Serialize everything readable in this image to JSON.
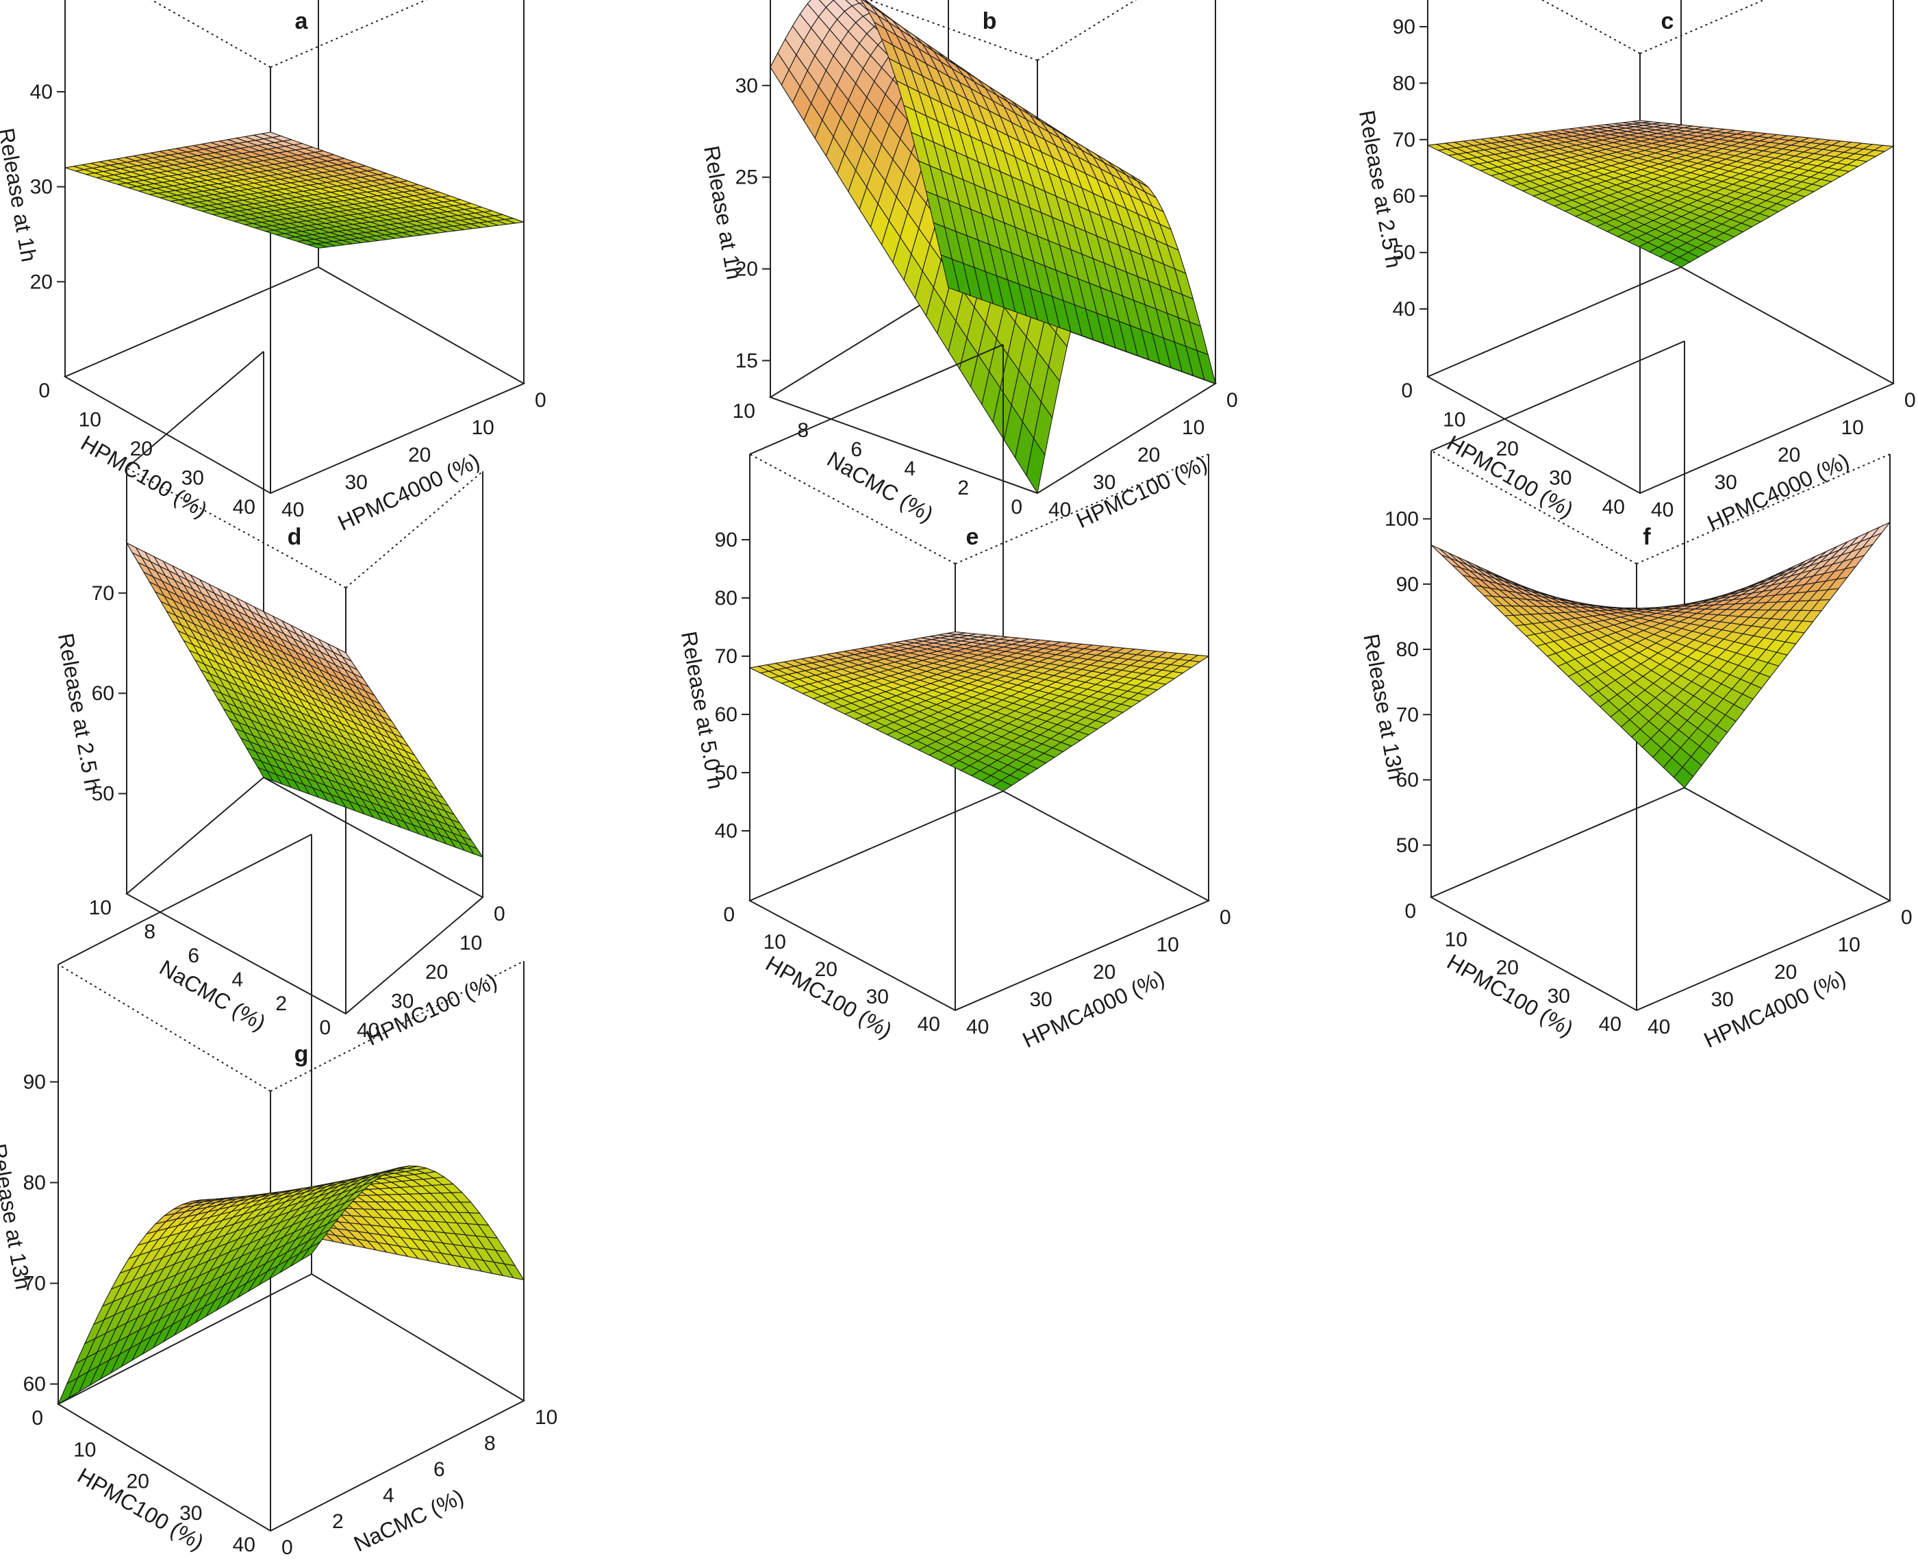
{
  "figure": {
    "panels": [
      "a",
      "b",
      "c",
      "d",
      "e",
      "f",
      "g"
    ]
  },
  "colors": {
    "surface_low": "#2fa400",
    "surface_mid": "#e2dc14",
    "surface_high": "#e9a35e",
    "surface_top": "#f5d5cb",
    "mesh": "#1d1d1d",
    "box": "#222222"
  },
  "chart_data": [
    {
      "type": "surface",
      "panel": "a",
      "title": "a",
      "zlabel": "Release at 1h",
      "xlabel": "HPMC100 (%)",
      "ylabel": "HPMC4000 (%)",
      "x_ticks": [
        "0",
        "10",
        "20",
        "30",
        "40"
      ],
      "y_ticks": [
        "0",
        "10",
        "20",
        "30",
        "40"
      ],
      "z_ticks": [
        "20",
        "30",
        "40"
      ],
      "x_range": [
        0,
        40
      ],
      "y_range": [
        0,
        40
      ],
      "z_range": [
        10,
        48
      ],
      "corner_values": {
        "x0_y0": 48,
        "x0_y40": 27,
        "x40_y0": 32,
        "x40_y40": 12
      },
      "shape": "bilinear"
    },
    {
      "type": "surface",
      "panel": "b",
      "title": "b",
      "zlabel": "Release at 1h",
      "xlabel": "NaCMC (%)",
      "ylabel": "HPMC100 (%)",
      "x_ticks": [
        "10",
        "8",
        "6",
        "4",
        "2",
        "0"
      ],
      "y_ticks": [
        "0",
        "10",
        "20",
        "30",
        "40"
      ],
      "z_ticks": [
        "15",
        "20",
        "25",
        "30"
      ],
      "x_range": [
        0,
        10
      ],
      "y_range": [
        0,
        40
      ],
      "z_range": [
        13,
        33
      ],
      "corner_values": {
        "x10_y0": 13,
        "x10_y40": 13,
        "x0_y0": 31,
        "x0_y40": 13
      },
      "shape": "ridge"
    },
    {
      "type": "surface",
      "panel": "c",
      "title": "c",
      "zlabel": "Release at 2.5 h",
      "xlabel": "HPMC100 (%)",
      "ylabel": "HPMC4000 (%)",
      "x_ticks": [
        "0",
        "10",
        "20",
        "30",
        "40"
      ],
      "y_ticks": [
        "0",
        "10",
        "20",
        "30",
        "40"
      ],
      "z_ticks": [
        "40",
        "50",
        "60",
        "70",
        "80",
        "90"
      ],
      "x_range": [
        0,
        40
      ],
      "y_range": [
        0,
        40
      ],
      "z_range": [
        28,
        94
      ],
      "corner_values": {
        "x0_y0": 94,
        "x0_y40": 70,
        "x40_y0": 69,
        "x40_y40": 28
      },
      "shape": "bilinear"
    },
    {
      "type": "surface",
      "panel": "d",
      "title": "d",
      "zlabel": "Release at 2.5 h",
      "xlabel": "NaCMC (%)",
      "ylabel": "HPMC100 (%)",
      "x_ticks": [
        "10",
        "8",
        "6",
        "4",
        "2",
        "0"
      ],
      "y_ticks": [
        "0",
        "10",
        "20",
        "30",
        "40"
      ],
      "z_ticks": [
        "50",
        "60",
        "70"
      ],
      "x_range": [
        0,
        10
      ],
      "y_range": [
        0,
        40
      ],
      "z_range": [
        40,
        76
      ],
      "corner_values": {
        "x10_y0": 76,
        "x10_y40": 44,
        "x0_y0": 75,
        "x0_y40": 40
      },
      "shape": "plane"
    },
    {
      "type": "surface",
      "panel": "e",
      "title": "e",
      "zlabel": "Release at 5.0 h",
      "xlabel": "HPMC100 (%)",
      "ylabel": "HPMC4000 (%)",
      "x_ticks": [
        "0",
        "10",
        "20",
        "30",
        "40"
      ],
      "y_ticks": [
        "0",
        "10",
        "20",
        "30",
        "40"
      ],
      "z_ticks": [
        "40",
        "50",
        "60",
        "70",
        "80",
        "90"
      ],
      "x_range": [
        0,
        40
      ],
      "y_range": [
        0,
        40
      ],
      "z_range": [
        28,
        93
      ],
      "corner_values": {
        "x0_y0": 93,
        "x0_y40": 70,
        "x40_y0": 68,
        "x40_y40": 28
      },
      "shape": "bilinear"
    },
    {
      "type": "surface",
      "panel": "f",
      "title": "f",
      "zlabel": "Release at 13h",
      "xlabel": "HPMC100 (%)",
      "ylabel": "HPMC4000 (%)",
      "x_ticks": [
        "0",
        "10",
        "20",
        "30",
        "40"
      ],
      "y_ticks": [
        "0",
        "10",
        "20",
        "30",
        "40"
      ],
      "z_ticks": [
        "50",
        "60",
        "70",
        "80",
        "90",
        "100"
      ],
      "x_range": [
        0,
        40
      ],
      "y_range": [
        0,
        40
      ],
      "z_range": [
        42,
        100
      ],
      "corner_values": {
        "x0_y0": 99,
        "x0_y40": 100,
        "x40_y0": 96,
        "x40_y40": 42
      },
      "shape": "bilinear"
    },
    {
      "type": "surface",
      "panel": "g",
      "title": "g",
      "zlabel": "Release at 13h",
      "xlabel": "HPMC100 (%)",
      "ylabel": "NaCMC (%)",
      "x_ticks": [
        "0",
        "10",
        "20",
        "30",
        "40"
      ],
      "y_ticks": [
        "10",
        "8",
        "6",
        "4",
        "2",
        "0"
      ],
      "z_ticks": [
        "60",
        "70",
        "80",
        "90"
      ],
      "x_range": [
        0,
        40
      ],
      "y_range": [
        0,
        10
      ],
      "z_range": [
        58,
        95
      ],
      "corner_values": {
        "x0_y10": 88,
        "x0_y0": 70,
        "x40_y10": 58,
        "x40_y0": 60
      },
      "shape": "ridge"
    }
  ]
}
